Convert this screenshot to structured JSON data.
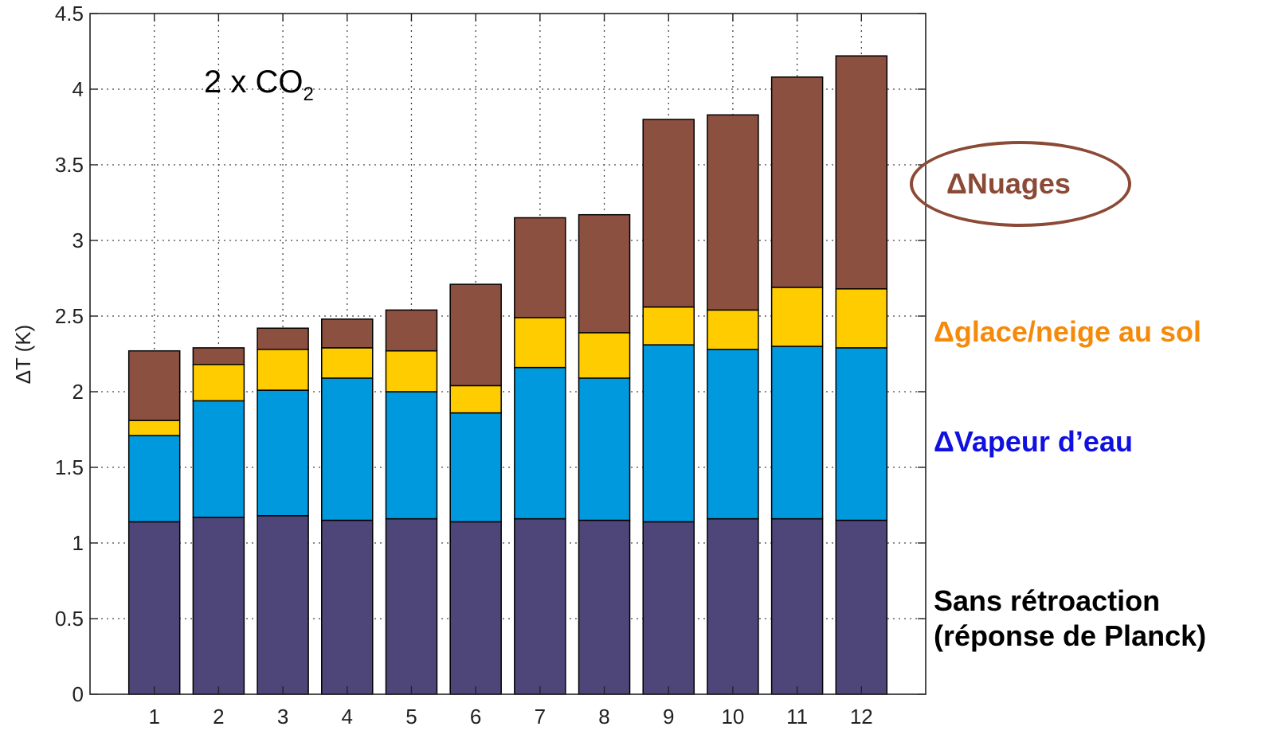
{
  "chart_data": {
    "type": "bar",
    "stacked": true,
    "title": "",
    "annotation": {
      "text": "2 x CO",
      "subscript": "2"
    },
    "xlabel": "",
    "ylabel": "ΔT (K)",
    "ylim": [
      0,
      4.5
    ],
    "yticks": [
      "0",
      "0.5",
      "1",
      "1.5",
      "2",
      "2.5",
      "3",
      "3.5",
      "4",
      "4.5"
    ],
    "categories": [
      "1",
      "2",
      "3",
      "4",
      "5",
      "6",
      "7",
      "8",
      "9",
      "10",
      "11",
      "12"
    ],
    "grid": true,
    "series": [
      {
        "key": "planck",
        "color": "#4e4679",
        "values": [
          1.14,
          1.17,
          1.18,
          1.15,
          1.16,
          1.14,
          1.16,
          1.15,
          1.14,
          1.16,
          1.16,
          1.15
        ]
      },
      {
        "key": "vapeur",
        "color": "#0099dd",
        "values": [
          0.57,
          0.77,
          0.83,
          0.94,
          0.84,
          0.72,
          1.0,
          0.94,
          1.17,
          1.12,
          1.14,
          1.14
        ]
      },
      {
        "key": "glace",
        "color": "#ffcc00",
        "values": [
          0.1,
          0.24,
          0.27,
          0.2,
          0.27,
          0.18,
          0.33,
          0.3,
          0.25,
          0.26,
          0.39,
          0.39
        ]
      },
      {
        "key": "nuages",
        "color": "#8b5040",
        "values": [
          0.46,
          0.11,
          0.14,
          0.19,
          0.27,
          0.67,
          0.66,
          0.78,
          1.24,
          1.29,
          1.39,
          1.54
        ]
      }
    ],
    "legend": {
      "nuages": "ΔNuages",
      "glace": "Δglace/neige au sol",
      "vapeur": "ΔVapeur d’eau",
      "planck_line1": "Sans rétroaction",
      "planck_line2": "(réponse de Planck)"
    }
  }
}
